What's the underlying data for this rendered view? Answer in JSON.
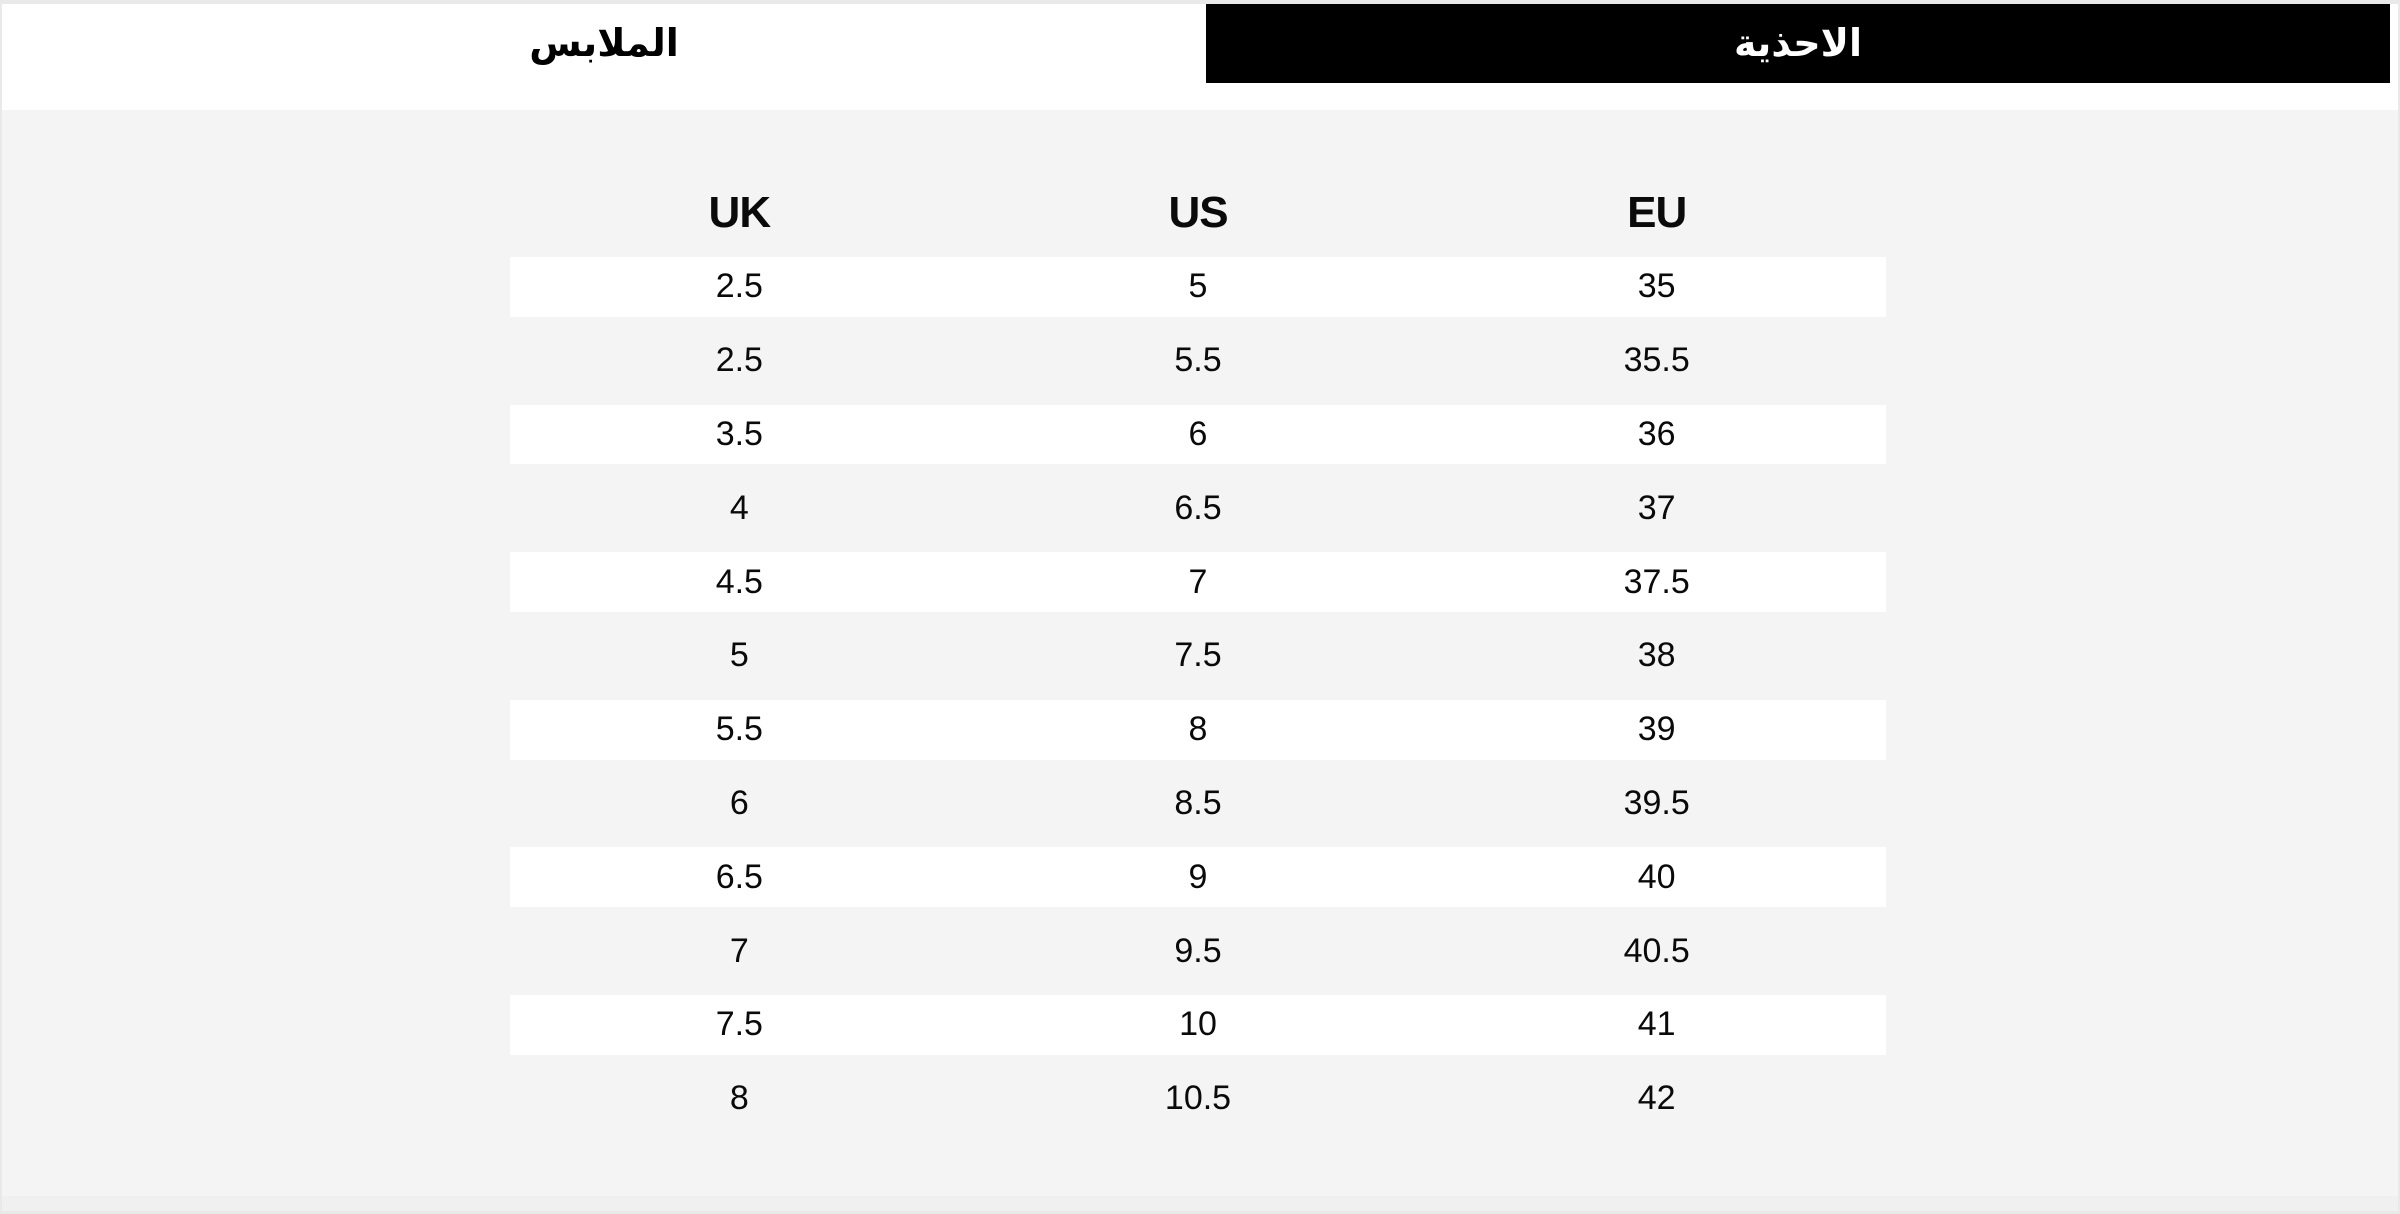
{
  "tabs": {
    "shoes": {
      "label": "الاحذية",
      "active": true
    },
    "clothing": {
      "label": "الملابس",
      "active": false
    }
  },
  "table": {
    "headers": [
      "UK",
      "US",
      "EU"
    ],
    "rows": [
      [
        "2.5",
        "5",
        "35"
      ],
      [
        "2.5",
        "5.5",
        "35.5"
      ],
      [
        "3.5",
        "6",
        "36"
      ],
      [
        "4",
        "6.5",
        "37"
      ],
      [
        "4.5",
        "7",
        "37.5"
      ],
      [
        "5",
        "7.5",
        "38"
      ],
      [
        "5.5",
        "8",
        "39"
      ],
      [
        "6",
        "8.5",
        "39.5"
      ],
      [
        "6.5",
        "9",
        "40"
      ],
      [
        "7",
        "9.5",
        "40.5"
      ],
      [
        "7.5",
        "10",
        "41"
      ],
      [
        "8",
        "10.5",
        "42"
      ]
    ]
  },
  "colors": {
    "page-bg": "#f4f4f5",
    "active-tab-bg": "#000000",
    "active-tab-text": "#ffffff",
    "inactive-tab-text": "#000000",
    "stripe-bg": "#ffffff",
    "border": "#e9e9e9",
    "text": "#0a0a0a"
  }
}
